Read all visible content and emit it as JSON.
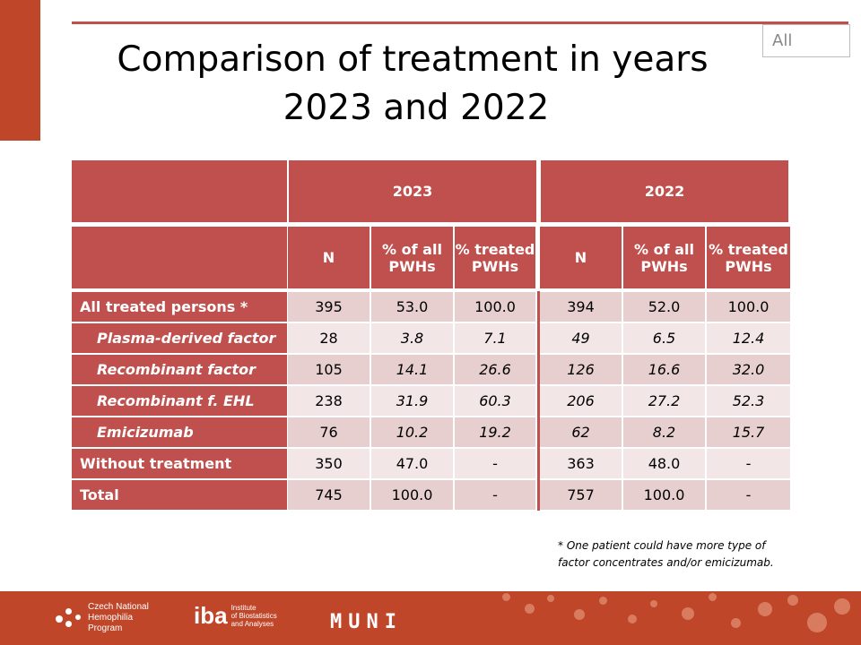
{
  "title_line1": "Comparison of treatment in years",
  "title_line2": "2023 and 2022",
  "filter_label": "All",
  "table": {
    "years": [
      "2023",
      "2022"
    ],
    "subheaders": [
      "N",
      "% of all PWHs",
      "% treated PWHs"
    ],
    "rows": [
      {
        "label": "All treated persons  *",
        "sub": false,
        "italic": false,
        "vals": [
          "395",
          "53.0",
          "100.0",
          "394",
          "52.0",
          "100.0"
        ]
      },
      {
        "label": "Plasma-derived  factor",
        "sub": true,
        "italic": true,
        "vals": [
          "28",
          "3.8",
          "7.1",
          "49",
          "6.5",
          "12.4"
        ]
      },
      {
        "label": "Recombinant factor",
        "sub": true,
        "italic": true,
        "vals": [
          "105",
          "14.1",
          "26.6",
          "126",
          "16.6",
          "32.0"
        ]
      },
      {
        "label": "Recombinant f. EHL",
        "sub": true,
        "italic": true,
        "vals": [
          "238",
          "31.9",
          "60.3",
          "206",
          "27.2",
          "52.3"
        ]
      },
      {
        "label": "Emicizumab",
        "sub": true,
        "italic": true,
        "vals": [
          "76",
          "10.2",
          "19.2",
          "62",
          "8.2",
          "15.7"
        ]
      },
      {
        "label": "Without treatment",
        "sub": false,
        "italic": false,
        "vals": [
          "350",
          "47.0",
          "-",
          "363",
          "48.0",
          "-"
        ]
      },
      {
        "label": "Total",
        "sub": false,
        "italic": false,
        "vals": [
          "745",
          "100.0",
          "-",
          "757",
          "100.0",
          "-"
        ]
      }
    ]
  },
  "footnote_line1": "* One patient could have more type of",
  "footnote_line2": "factor concentrates and/or emicizumab.",
  "logos": {
    "chnp": [
      "Czech National",
      "Hemophilia",
      "Program"
    ],
    "iba_mark": "iba",
    "iba_text": [
      "Institute",
      "of Biostatistics",
      "and Analyses"
    ],
    "muni": "MUNI"
  }
}
